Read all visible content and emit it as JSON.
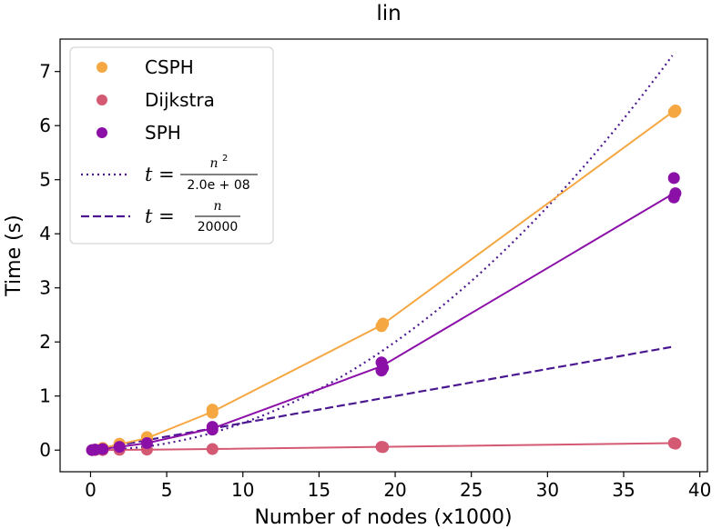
{
  "chart_data": {
    "type": "scatter",
    "title": "lin",
    "xlabel": "Number of nodes (x1000)",
    "ylabel": "Time (s)",
    "xlim": [
      -2,
      40.5
    ],
    "ylim": [
      -0.4,
      7.6
    ],
    "xticks": [
      0,
      5,
      10,
      15,
      20,
      25,
      30,
      35,
      40
    ],
    "yticks": [
      0,
      1,
      2,
      3,
      4,
      5,
      6,
      7
    ],
    "xtick_labels": [
      "0",
      "5",
      "10",
      "15",
      "20",
      "25",
      "30",
      "35",
      "40"
    ],
    "ytick_labels": [
      "0",
      "1",
      "2",
      "3",
      "4",
      "5",
      "6",
      "7"
    ],
    "legend_position": "top-left",
    "series": [
      {
        "name": "CSPH",
        "color": "#f5a742",
        "x": [
          0.1,
          0.3,
          0.8,
          1.9,
          3.7,
          8.0,
          19.1,
          38.3
        ],
        "y": [
          0.0,
          0.01,
          0.04,
          0.11,
          0.22,
          0.71,
          2.31,
          6.27
        ],
        "points": [
          [
            0.1,
            0.0
          ],
          [
            0.3,
            0.01
          ],
          [
            0.8,
            0.04
          ],
          [
            1.9,
            0.1
          ],
          [
            1.9,
            0.12
          ],
          [
            3.7,
            0.21
          ],
          [
            3.7,
            0.24
          ],
          [
            8.0,
            0.69
          ],
          [
            8.0,
            0.75
          ],
          [
            19.1,
            2.29
          ],
          [
            19.2,
            2.34
          ],
          [
            38.3,
            6.25
          ],
          [
            38.4,
            6.28
          ]
        ]
      },
      {
        "name": "Dijkstra",
        "color": "#d45a74",
        "x": [
          0.1,
          0.3,
          0.8,
          1.9,
          3.7,
          8.0,
          19.1,
          38.3
        ],
        "y": [
          0.0,
          0.0,
          0.0,
          0.005,
          0.008,
          0.02,
          0.06,
          0.13
        ],
        "points": [
          [
            0.1,
            0.0
          ],
          [
            0.3,
            0.0
          ],
          [
            0.8,
            0.0
          ],
          [
            1.9,
            0.005
          ],
          [
            3.7,
            0.008
          ],
          [
            8.0,
            0.02
          ],
          [
            19.1,
            0.06
          ],
          [
            19.2,
            0.055
          ],
          [
            38.3,
            0.13
          ],
          [
            38.4,
            0.12
          ]
        ]
      },
      {
        "name": "SPH",
        "color": "#8b10a8",
        "x": [
          0.1,
          0.3,
          0.8,
          1.9,
          3.7,
          8.0,
          19.1,
          38.3
        ],
        "y": [
          0.0,
          0.01,
          0.02,
          0.06,
          0.13,
          0.4,
          1.55,
          4.75
        ],
        "points": [
          [
            0.1,
            0.0
          ],
          [
            0.3,
            0.01
          ],
          [
            0.8,
            0.02
          ],
          [
            1.9,
            0.06
          ],
          [
            3.7,
            0.13
          ],
          [
            8.0,
            0.38
          ],
          [
            8.0,
            0.43
          ],
          [
            19.1,
            1.47
          ],
          [
            19.1,
            1.62
          ],
          [
            19.2,
            1.52
          ],
          [
            38.3,
            5.03
          ],
          [
            38.3,
            4.67
          ],
          [
            38.4,
            4.75
          ]
        ]
      },
      {
        "name": "t = n^2 / 2.0e+08",
        "color": "#4b1791",
        "style": "dotted",
        "formula": "quadratic",
        "x_start": 0.1,
        "x_end": 38.2,
        "divisor": 200000000
      },
      {
        "name": "t = n / 20000",
        "color": "#4b1791",
        "style": "dashed",
        "formula": "linear",
        "x_start": 0.1,
        "x_end": 38.2,
        "divisor": 20000
      }
    ],
    "legend": {
      "csph": "CSPH",
      "dijkstra": "Dijkstra",
      "sph": "SPH",
      "quad_lhs": "t =",
      "quad_num": "n",
      "quad_sup": "2",
      "quad_den": "2.0e + 08",
      "lin_lhs": "t =",
      "lin_num": "n",
      "lin_den": "20000"
    }
  }
}
